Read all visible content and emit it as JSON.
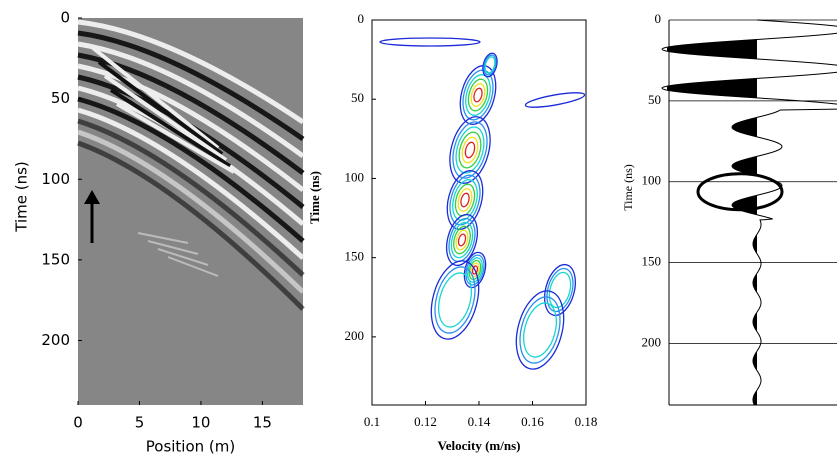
{
  "chart_data": [
    {
      "type": "image",
      "xlabel": "Position (m)",
      "ylabel": "Time (ns)",
      "xlim": [
        0,
        18.3
      ],
      "ylim": [
        0,
        240
      ],
      "xticks": [
        0,
        5,
        10,
        15
      ],
      "yticks": [
        0,
        50,
        100,
        150,
        200
      ]
    },
    {
      "type": "contour",
      "xlabel": "Velocity (m/ns)",
      "ylabel": "Time (ns)",
      "xlim": [
        0.1,
        0.18
      ],
      "ylim": [
        0,
        243
      ],
      "xticks": [
        0.1,
        0.12,
        0.14,
        0.16,
        0.18
      ],
      "yticks": [
        0,
        50,
        100,
        150,
        200
      ]
    },
    {
      "type": "wiggle",
      "ylabel": "Time (ns)",
      "ylim": [
        0,
        238
      ],
      "yticks": [
        0,
        50,
        100,
        150,
        200
      ],
      "grid": true
    }
  ]
}
